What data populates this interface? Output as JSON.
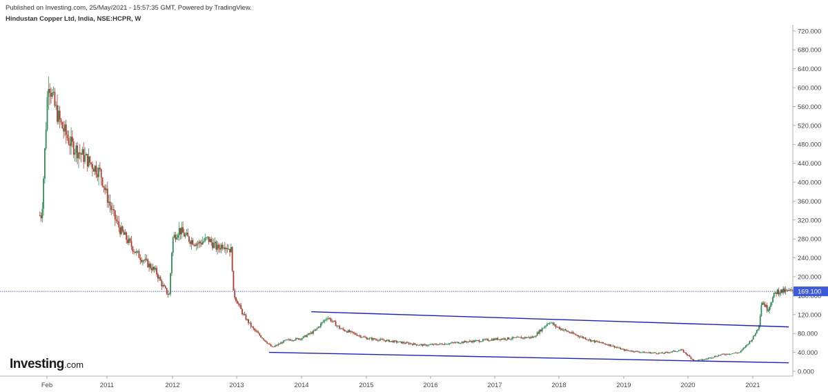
{
  "header": {
    "published": "Published on Investing.com, 25/May/2021 - 15:57:35 GMT, Powered by TradingView.",
    "symbol": "Hindustan Copper Ltd, India, NSE:HCPR, W"
  },
  "logo": {
    "main": "Investing",
    "suffix": ".com"
  },
  "colors": {
    "up": "#2e8b57",
    "down": "#b03a2e",
    "trendline": "#1f1fb8",
    "price_line": "#3b5bdb",
    "price_tag_bg": "#3b5bdb",
    "axis_line": "#999999"
  },
  "chart_data": {
    "type": "candlestick",
    "title": "",
    "xlabel": "",
    "ylabel": "",
    "ylim": [
      0,
      730
    ],
    "y_ticks": [
      "0.000",
      "40.000",
      "80.000",
      "120.000",
      "160.000",
      "200.000",
      "240.000",
      "280.000",
      "320.000",
      "360.000",
      "400.000",
      "440.000",
      "480.000",
      "520.000",
      "560.000",
      "600.000",
      "640.000",
      "680.000",
      "720.000"
    ],
    "x_ticks": [
      "Feb",
      "2011",
      "2012",
      "2013",
      "2014",
      "2015",
      "2016",
      "2017",
      "2018",
      "2019",
      "2020",
      "2021"
    ],
    "last_price": "169.100",
    "last_value": 169.1,
    "grid": false,
    "series": [
      {
        "x": [
          2010.0,
          2010.1,
          2010.2,
          2010.3,
          2010.45,
          2010.6,
          2010.75,
          2010.9,
          2011.0,
          2011.1,
          2011.2,
          2011.3,
          2011.45,
          2011.6,
          2011.75,
          2011.85,
          2011.95,
          2012.0,
          2012.1,
          2012.25,
          2012.4,
          2012.55,
          2012.7,
          2012.8,
          2012.92,
          2012.95,
          2013.1,
          2013.25,
          2013.4,
          2013.55,
          2013.75,
          2014.0,
          2014.2,
          2014.4,
          2014.6,
          2014.8,
          2015.0,
          2015.3,
          2015.6,
          2015.9,
          2016.2,
          2016.5,
          2016.8,
          2017.0,
          2017.3,
          2017.6,
          2017.85,
          2017.95,
          2018.2,
          2018.5,
          2018.8,
          2019.0,
          2019.3,
          2019.6,
          2019.9,
          2020.1,
          2020.25,
          2020.5,
          2020.8,
          2021.0,
          2021.1,
          2021.15,
          2021.25,
          2021.35,
          2021.4
        ],
        "values": [
          330,
          620,
          560,
          520,
          480,
          460,
          440,
          420,
          370,
          330,
          300,
          280,
          250,
          230,
          210,
          180,
          160,
          280,
          300,
          280,
          270,
          280,
          260,
          270,
          255,
          165,
          120,
          90,
          70,
          50,
          65,
          70,
          85,
          115,
          90,
          80,
          70,
          65,
          60,
          55,
          58,
          62,
          65,
          68,
          70,
          72,
          105,
          95,
          80,
          65,
          55,
          45,
          40,
          38,
          45,
          22,
          25,
          35,
          40,
          70,
          95,
          150,
          130,
          160,
          169
        ]
      }
    ],
    "trendlines": [
      {
        "points": [
          [
            2014.15,
            126
          ],
          [
            2021.6,
            94
          ]
        ]
      },
      {
        "points": [
          [
            2013.5,
            40
          ],
          [
            2021.6,
            18
          ]
        ]
      }
    ]
  }
}
